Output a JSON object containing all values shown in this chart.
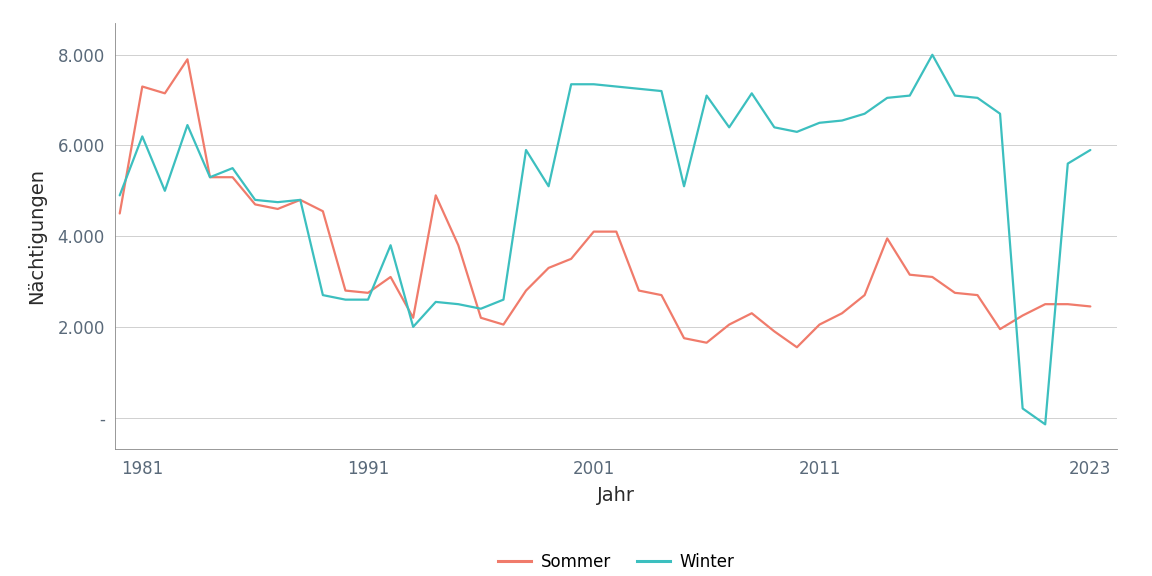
{
  "years": [
    1980,
    1981,
    1982,
    1983,
    1984,
    1985,
    1986,
    1987,
    1988,
    1989,
    1990,
    1991,
    1992,
    1993,
    1994,
    1995,
    1996,
    1997,
    1998,
    1999,
    2000,
    2001,
    2002,
    2003,
    2004,
    2005,
    2006,
    2007,
    2008,
    2009,
    2010,
    2011,
    2012,
    2013,
    2014,
    2015,
    2016,
    2017,
    2018,
    2019,
    2020,
    2021,
    2022,
    2023
  ],
  "sommer": [
    4500,
    7300,
    7150,
    7900,
    5300,
    5300,
    4700,
    4600,
    4800,
    4550,
    2800,
    2750,
    3100,
    2200,
    4900,
    3800,
    2200,
    2050,
    2800,
    3300,
    3500,
    4100,
    4100,
    2800,
    2700,
    1750,
    1650,
    2050,
    2300,
    1900,
    1550,
    2050,
    2300,
    2700,
    3950,
    3150,
    3100,
    2750,
    2700,
    1950,
    2250,
    2500,
    2500,
    2450
  ],
  "winter": [
    4900,
    6200,
    5000,
    6450,
    5300,
    5500,
    4800,
    4750,
    4800,
    2700,
    2600,
    2600,
    3800,
    2000,
    2550,
    2500,
    2400,
    2600,
    5900,
    5100,
    7350,
    7350,
    7300,
    7250,
    7200,
    5100,
    7100,
    6400,
    7150,
    6400,
    6300,
    6500,
    6550,
    6700,
    7050,
    7100,
    8000,
    7100,
    7050,
    6700,
    200,
    -150,
    5600,
    5900
  ],
  "sommer_color": "#F07B6B",
  "winter_color": "#3CBFBF",
  "background_color": "#ffffff",
  "grid_color": "#d0d0d0",
  "tick_color": "#5a6a7a",
  "xlabel": "Jahr",
  "ylabel": "Nächtigungen",
  "ytick_vals": [
    0,
    2000,
    4000,
    6000,
    8000
  ],
  "ytick_labels": [
    "-",
    "2.000",
    "4.000",
    "6.000",
    "8.000"
  ],
  "xtick_vals": [
    1981,
    1991,
    2001,
    2011,
    2023
  ],
  "ylim": [
    -700,
    8700
  ],
  "xlim": [
    1979.8,
    2024.2
  ],
  "legend_sommer": "Sommer",
  "legend_winter": "Winter",
  "line_width": 1.6,
  "label_fontsize": 14,
  "tick_fontsize": 12
}
